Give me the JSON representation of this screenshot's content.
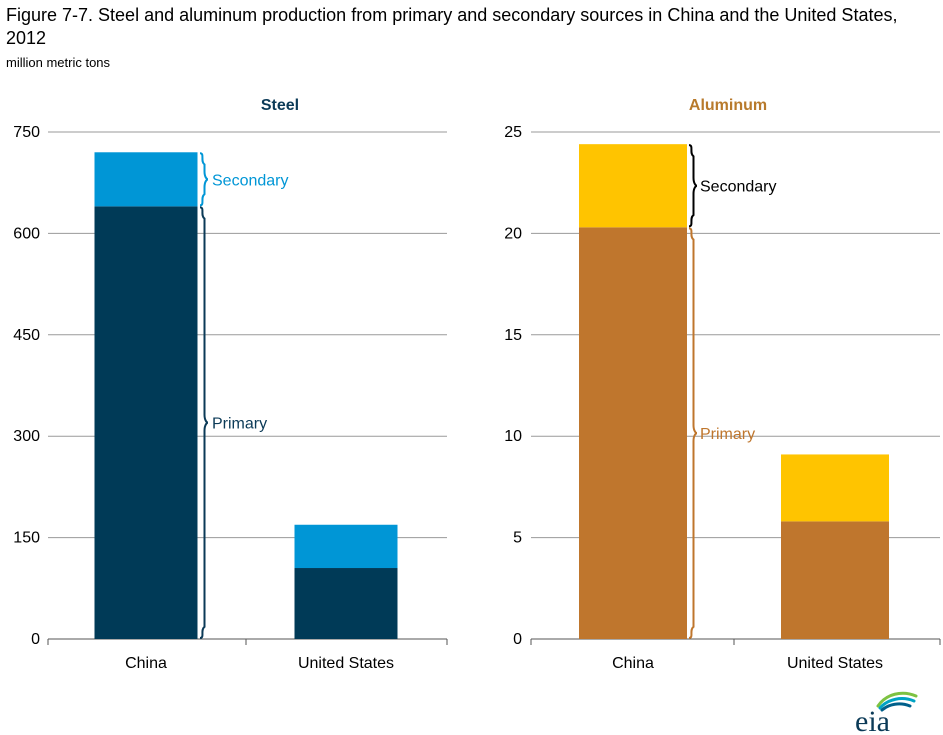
{
  "title": "Figure 7-7. Steel and aluminum production from primary and secondary sources in China and the United States, 2012",
  "units": "million metric tons",
  "logo": {
    "text": "eia",
    "icon": "eia-logo-icon"
  },
  "chart_data": [
    {
      "type": "bar",
      "stacked": true,
      "title": "Steel",
      "title_color": "#0b3a57",
      "categories": [
        "China",
        "United States"
      ],
      "ylim": [
        0,
        750
      ],
      "yticks": [
        0,
        150,
        300,
        450,
        600,
        750
      ],
      "ytick_labels": [
        "0",
        "150",
        "300",
        "450",
        "600",
        "750"
      ],
      "grid": true,
      "series": [
        {
          "name": "Primary",
          "color": "#003a57",
          "label_color": "#0b3a57",
          "values": [
            640,
            105
          ]
        },
        {
          "name": "Secondary",
          "color": "#0096d6",
          "label_color": "#0096d6",
          "values": [
            80,
            64
          ]
        }
      ],
      "annotations": [
        {
          "text": "Secondary",
          "series": "Secondary",
          "category": "China",
          "color": "#0096d6"
        },
        {
          "text": "Primary",
          "series": "Primary",
          "category": "China",
          "color": "#0b3a57"
        }
      ]
    },
    {
      "type": "bar",
      "stacked": true,
      "title": "Aluminum",
      "title_color": "#b87a2c",
      "categories": [
        "China",
        "United States"
      ],
      "ylim": [
        0,
        25
      ],
      "yticks": [
        0,
        5,
        10,
        15,
        20,
        25
      ],
      "ytick_labels": [
        "0",
        "5",
        "10",
        "15",
        "20",
        "25"
      ],
      "grid": true,
      "series": [
        {
          "name": "Primary",
          "color": "#bf762d",
          "label_color": "#bf762d",
          "values": [
            20.3,
            5.8
          ]
        },
        {
          "name": "Secondary",
          "color": "#ffc400",
          "label_color": "#000000",
          "values": [
            4.1,
            3.3
          ]
        }
      ],
      "annotations": [
        {
          "text": "Secondary",
          "series": "Secondary",
          "category": "China",
          "color": "#000000"
        },
        {
          "text": "Primary",
          "series": "Primary",
          "category": "China",
          "color": "#bf762d"
        }
      ]
    }
  ]
}
